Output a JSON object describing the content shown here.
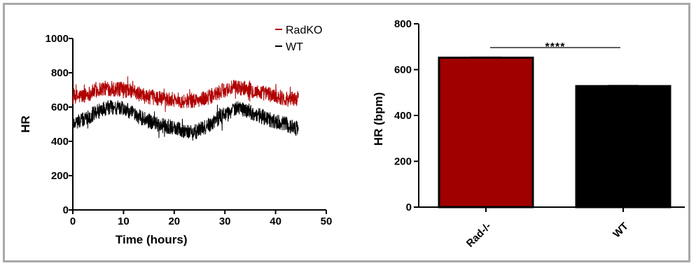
{
  "chart_data": [
    {
      "type": "line",
      "title": "",
      "xlabel": "Time (hours)",
      "ylabel": "HR",
      "xlim": [
        0,
        50
      ],
      "ylim": [
        0,
        1000
      ],
      "xticks": [
        "0",
        "10",
        "20",
        "30",
        "40",
        "50"
      ],
      "yticks": [
        "0",
        "200",
        "400",
        "600",
        "800",
        "1000"
      ],
      "grid": false,
      "legend_position": "top-right",
      "x_extent_hours": [
        0,
        44.5
      ],
      "series": [
        {
          "name": "RadKO",
          "color": "#b00000",
          "mean_trend_x": [
            0,
            2,
            4,
            6,
            8,
            10,
            12,
            14,
            16,
            18,
            20,
            22,
            24,
            26,
            28,
            30,
            32,
            34,
            36,
            38,
            40,
            42,
            44.5
          ],
          "mean_trend_y": [
            655,
            665,
            690,
            710,
            705,
            700,
            690,
            665,
            655,
            650,
            645,
            635,
            640,
            650,
            670,
            700,
            715,
            710,
            690,
            680,
            665,
            650,
            650
          ],
          "noise_amplitude": 45,
          "range": [
            570,
            790
          ]
        },
        {
          "name": "WT",
          "color": "#000000",
          "mean_trend_x": [
            0,
            2,
            4,
            6,
            8,
            10,
            12,
            14,
            16,
            18,
            20,
            22,
            24,
            26,
            28,
            30,
            32,
            34,
            36,
            38,
            40,
            42,
            44.5
          ],
          "mean_trend_y": [
            510,
            525,
            560,
            590,
            600,
            590,
            560,
            530,
            505,
            490,
            480,
            460,
            455,
            480,
            520,
            560,
            590,
            585,
            560,
            535,
            515,
            500,
            470
          ],
          "noise_amplitude": 45,
          "range": [
            320,
            660
          ]
        }
      ]
    },
    {
      "type": "bar",
      "title": "",
      "xlabel": "",
      "ylabel": "HR (bpm)",
      "ylim": [
        0,
        800
      ],
      "yticks": [
        "0",
        "200",
        "400",
        "600",
        "800"
      ],
      "categories": [
        "Rad-/-",
        "WT"
      ],
      "values": [
        652,
        528
      ],
      "error": [
        2,
        2
      ],
      "colors": [
        "#a00000",
        "#000000"
      ],
      "significance": {
        "label": "****",
        "between": [
          "Rad-/-",
          "WT"
        ]
      }
    }
  ]
}
